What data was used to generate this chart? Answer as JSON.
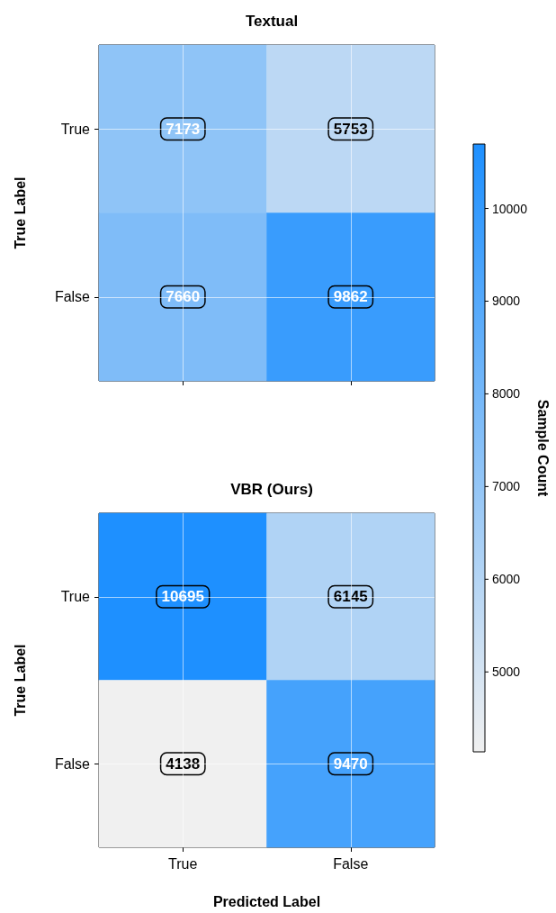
{
  "chart_data": [
    {
      "type": "heatmap",
      "title": "Textual",
      "ylabel": "True Label",
      "categories": [
        null,
        null
      ],
      "y_categories": [
        "True",
        "False"
      ],
      "cells": [
        [
          7173,
          5753
        ],
        [
          7660,
          9862
        ]
      ],
      "data_labels": true,
      "grid": true,
      "tick_labels": "y",
      "clim": [
        4138,
        10695
      ],
      "cticks": [
        5000,
        6000,
        7000,
        8000,
        9000,
        10000
      ],
      "clabel": "Sample Count"
    },
    {
      "type": "heatmap",
      "title": "VBR (Ours)",
      "xlabel": "Predicted Label",
      "ylabel": "True Label",
      "categories": [
        "True",
        "False"
      ],
      "y_categories": [
        "True",
        "False"
      ],
      "cells": [
        [
          10695,
          6145
        ],
        [
          4138,
          9470
        ]
      ],
      "data_labels": true,
      "grid": true
    }
  ]
}
